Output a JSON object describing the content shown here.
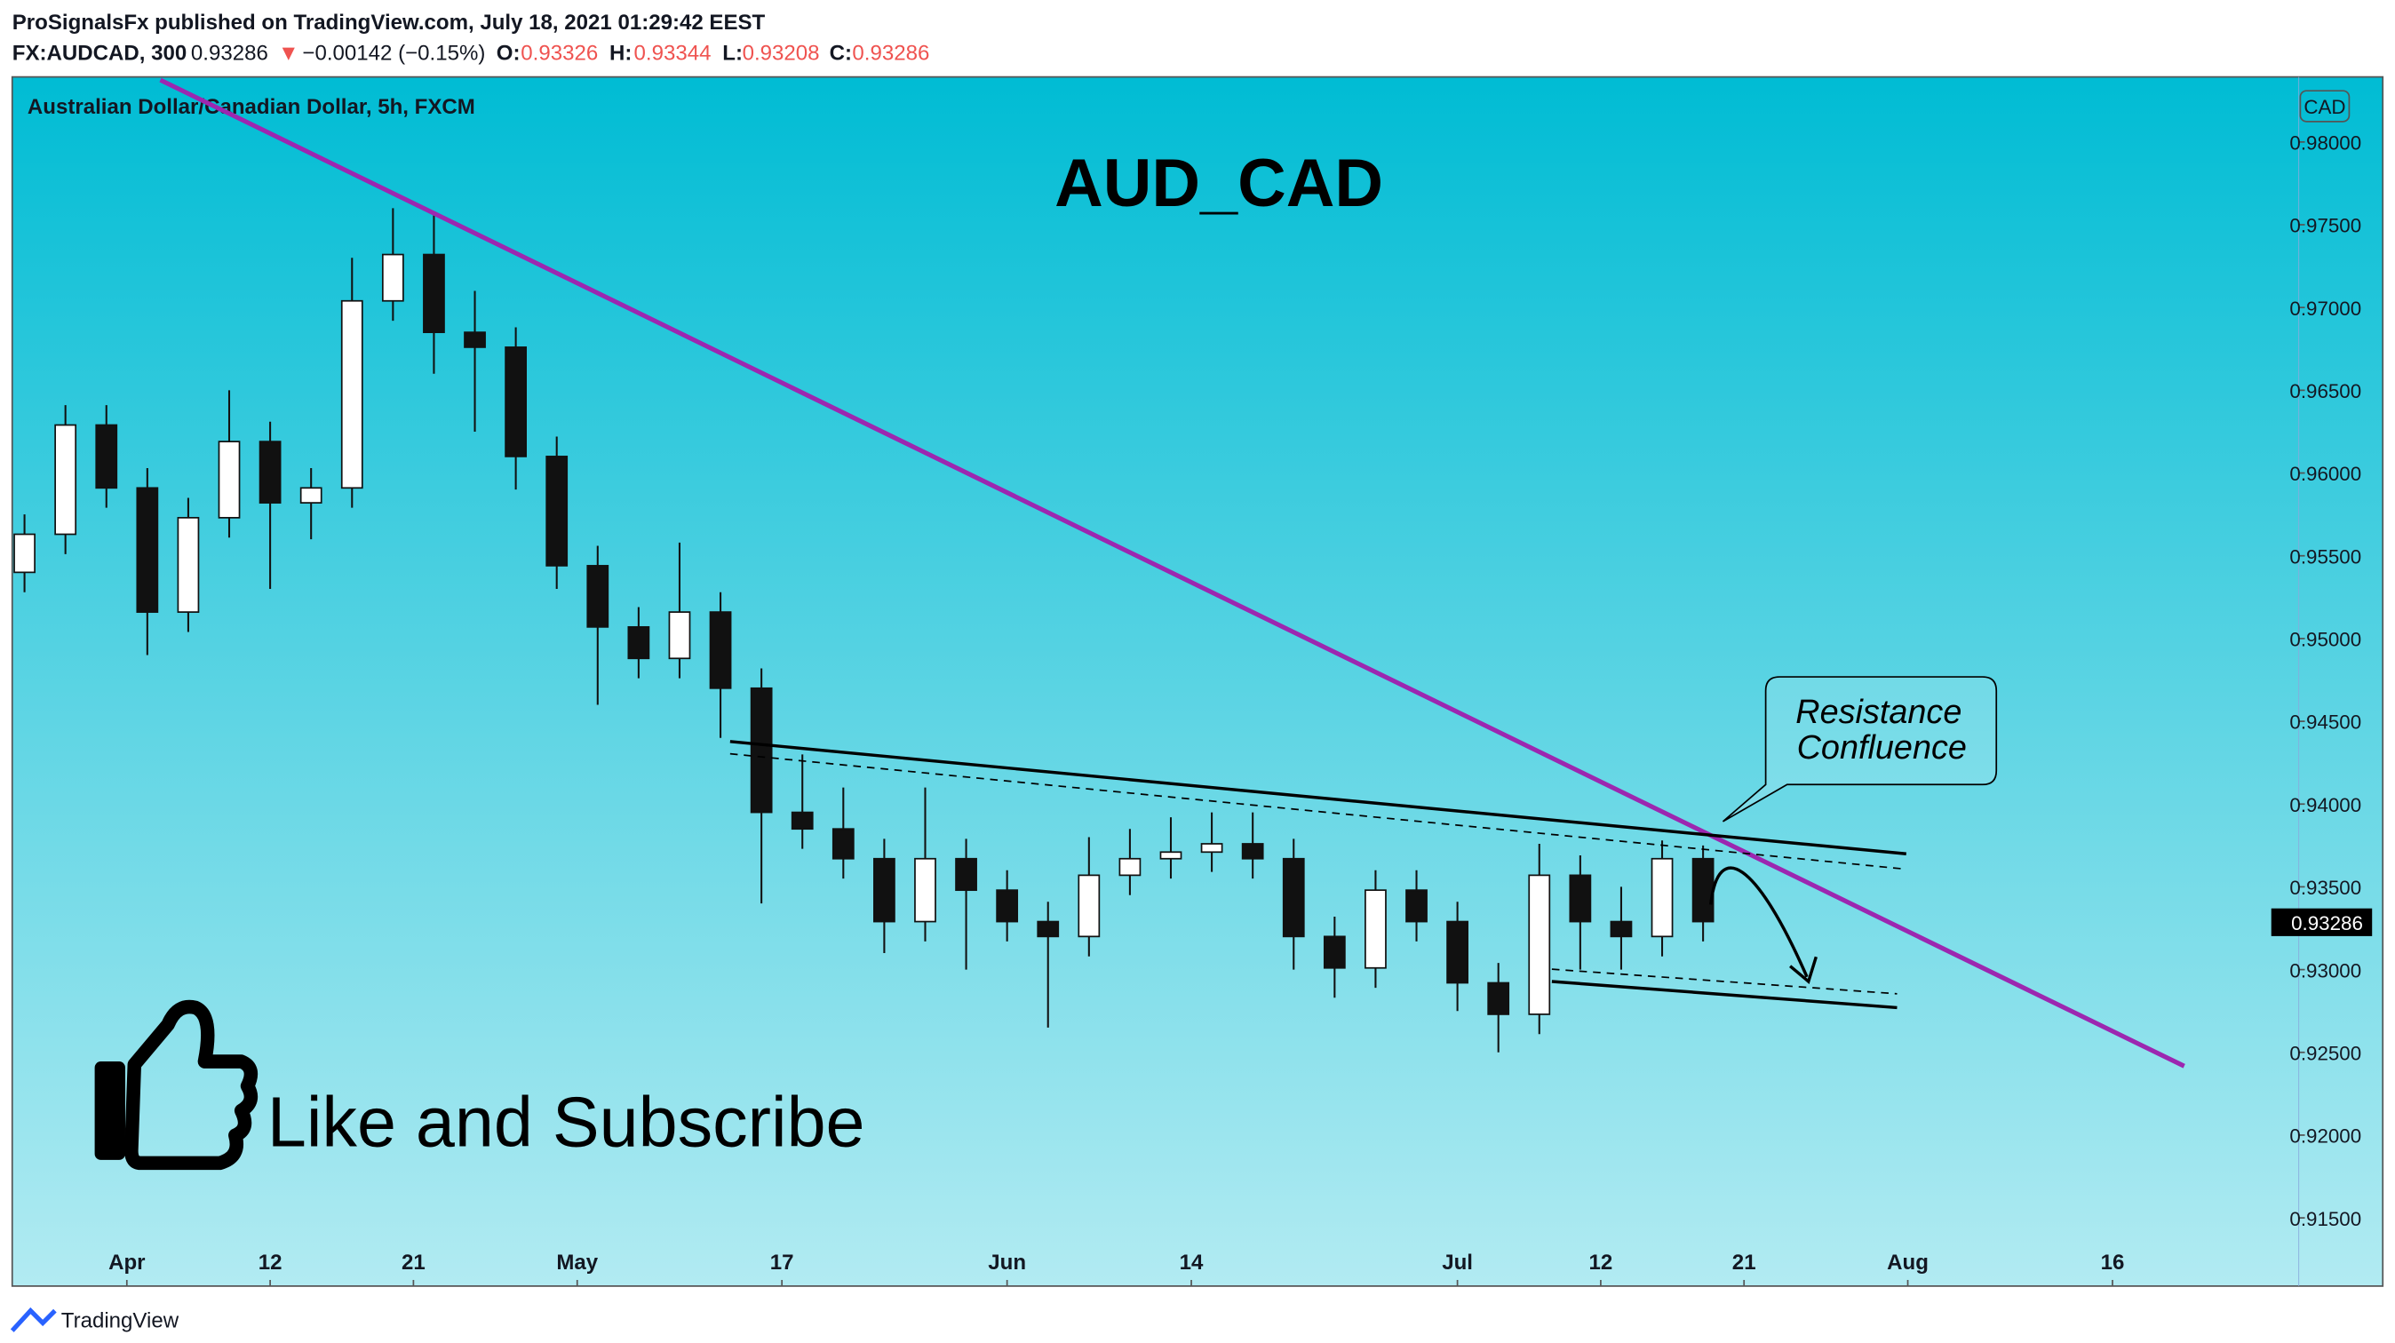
{
  "header": {
    "publisher": "ProSignalsFx published on TradingView.com, July 18, 2021 01:29:42 EEST",
    "symbol": "FX:AUDCAD, 300",
    "price": "0.93286",
    "arrow": "▼",
    "change": "−0.00142 (−0.15%)",
    "open_label": "O:",
    "open": "0.93326",
    "high_label": "H:",
    "high": "0.93344",
    "low_label": "L:",
    "low": "0.93208",
    "close_label": "C:",
    "close": "0.93286"
  },
  "footer": {
    "brand": "TradingView"
  },
  "chart_data": {
    "type": "candlestick",
    "title": "AUD_CAD",
    "subtitle": "Australian Dollar/Canadian Dollar, 5h, FXCM",
    "currency": "CAD",
    "color": "#111111",
    "annotations": {
      "callout": [
        "Resistance",
        "Confluence"
      ],
      "promo": "Like and Subscribe"
    },
    "last_price": 0.93286,
    "x": [
      -5,
      -3,
      -1,
      1,
      3,
      5,
      7,
      9,
      11,
      13,
      15,
      17,
      19,
      21,
      23,
      25,
      27,
      29,
      31,
      33,
      35,
      37,
      39,
      41,
      43,
      45,
      47,
      49,
      51,
      53,
      55,
      57,
      59,
      61,
      63,
      65,
      67,
      69,
      71,
      73,
      75,
      77
    ],
    "open": [
      0.954,
      0.9563,
      0.9629,
      0.9591,
      0.9516,
      0.9573,
      0.9619,
      0.9582,
      0.9591,
      0.9704,
      0.9732,
      0.9685,
      0.9676,
      0.961,
      0.9544,
      0.9507,
      0.9488,
      0.9516,
      0.947,
      0.9395,
      0.9385,
      0.9367,
      0.9329,
      0.9367,
      0.9348,
      0.9329,
      0.932,
      0.9357,
      0.9367,
      0.9371,
      0.9376,
      0.9367,
      0.932,
      0.9301,
      0.9348,
      0.9329,
      0.9292,
      0.9273,
      0.9357,
      0.9329,
      0.932,
      0.9367
    ],
    "high": [
      0.9575,
      0.9641,
      0.9641,
      0.9603,
      0.9585,
      0.965,
      0.9631,
      0.9603,
      0.973,
      0.976,
      0.9758,
      0.971,
      0.9688,
      0.9622,
      0.9556,
      0.9519,
      0.9558,
      0.9528,
      0.9482,
      0.943,
      0.941,
      0.9379,
      0.941,
      0.9379,
      0.936,
      0.9341,
      0.938,
      0.9385,
      0.9392,
      0.9395,
      0.9395,
      0.9379,
      0.9332,
      0.936,
      0.936,
      0.9341,
      0.9304,
      0.9376,
      0.9369,
      0.935,
      0.9378,
      0.9375
    ],
    "low": [
      0.9528,
      0.9551,
      0.9579,
      0.949,
      0.9504,
      0.9561,
      0.953,
      0.956,
      0.9579,
      0.9692,
      0.966,
      0.9625,
      0.959,
      0.953,
      0.946,
      0.9476,
      0.9476,
      0.944,
      0.934,
      0.9373,
      0.9355,
      0.931,
      0.9317,
      0.93,
      0.9317,
      0.9265,
      0.9308,
      0.9345,
      0.9355,
      0.9359,
      0.9355,
      0.93,
      0.9283,
      0.9289,
      0.9317,
      0.9275,
      0.925,
      0.9261,
      0.93,
      0.93,
      0.9308,
      0.9317
    ],
    "close": [
      0.9563,
      0.9629,
      0.9591,
      0.9516,
      0.9573,
      0.9619,
      0.9582,
      0.9591,
      0.9704,
      0.9732,
      0.9685,
      0.9676,
      0.961,
      0.9544,
      0.9507,
      0.9488,
      0.9516,
      0.947,
      0.9395,
      0.9385,
      0.9367,
      0.9329,
      0.9367,
      0.9348,
      0.9329,
      0.932,
      0.9357,
      0.9367,
      0.9371,
      0.9376,
      0.9367,
      0.932,
      0.9301,
      0.9348,
      0.9329,
      0.9292,
      0.9273,
      0.9357,
      0.9329,
      0.932,
      0.9367,
      0.9329
    ],
    "xlim": [
      -5.6,
      106.1
    ],
    "xticks": [
      {
        "value": 0,
        "label": "Apr"
      },
      {
        "value": 7,
        "label": "12"
      },
      {
        "value": 14,
        "label": "21"
      },
      {
        "value": 22,
        "label": "May"
      },
      {
        "value": 32,
        "label": "17"
      },
      {
        "value": 43,
        "label": "Jun"
      },
      {
        "value": 52,
        "label": "14"
      },
      {
        "value": 65,
        "label": "Jul"
      },
      {
        "value": 72,
        "label": "12"
      },
      {
        "value": 79,
        "label": "21"
      },
      {
        "value": 87,
        "label": "Aug"
      },
      {
        "value": 97,
        "label": "16"
      }
    ],
    "ylim": [
      0.91088,
      0.98393
    ],
    "yticks": [
      {
        "value": 0.915,
        "label": "0.91500"
      },
      {
        "value": 0.92,
        "label": "0.92000"
      },
      {
        "value": 0.925,
        "label": "0.92500"
      },
      {
        "value": 0.93,
        "label": "0.93000"
      },
      {
        "value": 0.935,
        "label": "0.93500"
      },
      {
        "value": 0.94,
        "label": "0.94000"
      },
      {
        "value": 0.945,
        "label": "0.94500"
      },
      {
        "value": 0.95,
        "label": "0.95000"
      },
      {
        "value": 0.955,
        "label": "0.95500"
      },
      {
        "value": 0.96,
        "label": "0.96000"
      },
      {
        "value": 0.965,
        "label": "0.96500"
      },
      {
        "value": 0.97,
        "label": "0.97000"
      },
      {
        "value": 0.975,
        "label": "0.97500"
      },
      {
        "value": 0.98,
        "label": "0.98000"
      }
    ]
  }
}
